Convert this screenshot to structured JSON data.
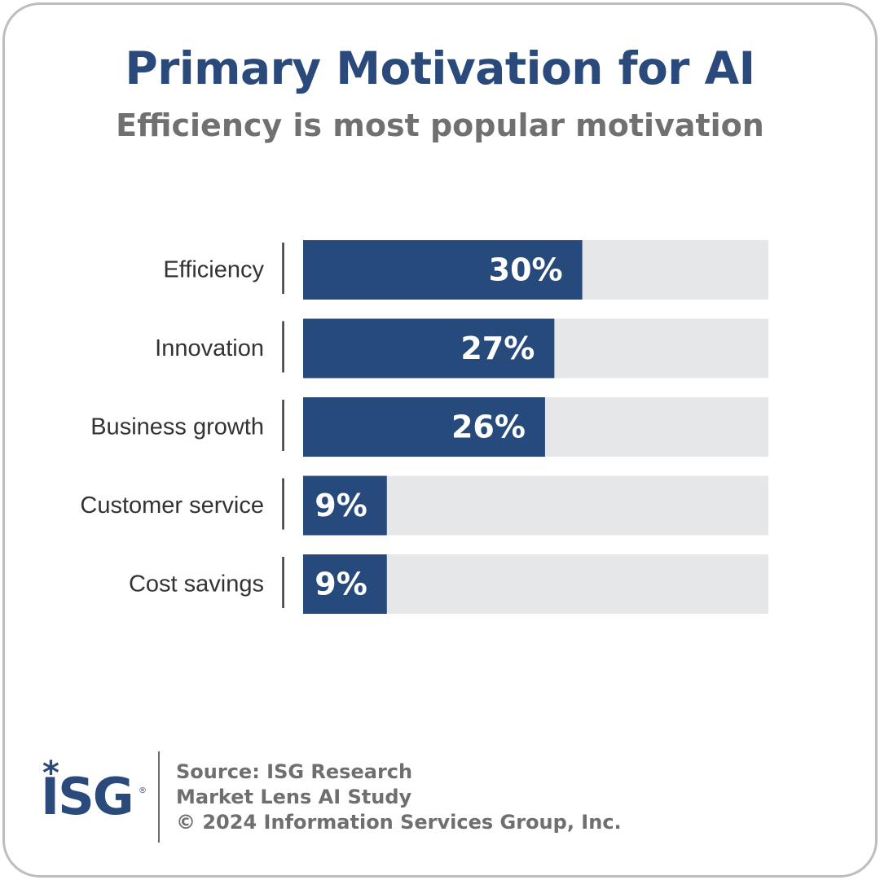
{
  "header": {
    "title": "Primary Motivation for AI",
    "subtitle": "Efficiency is most popular motivation"
  },
  "chart_data": {
    "type": "bar",
    "orientation": "horizontal",
    "title": "Primary Motivation for AI",
    "subtitle": "Efficiency is most popular motivation",
    "categories": [
      "Efficiency",
      "Innovation",
      "Business growth",
      "Customer service",
      "Cost savings"
    ],
    "values": [
      30,
      27,
      26,
      9,
      9
    ],
    "value_labels": [
      "30%",
      "27%",
      "26%",
      "9%",
      "9%"
    ],
    "unit": "%",
    "xlim": [
      0,
      50
    ],
    "grid": false,
    "legend": "none",
    "colors": {
      "bar": "#274a7d",
      "track": "#e6e7e8",
      "label": "#333333",
      "value_label": "#ffffff"
    }
  },
  "footer": {
    "source_lines": [
      "Source: ISG Research",
      "Market Lens AI Study",
      "© 2024 Information Services Group, Inc."
    ],
    "logo": {
      "text": "ISG",
      "mark": "*",
      "registered": "®",
      "color": "#2a4a7c"
    }
  }
}
